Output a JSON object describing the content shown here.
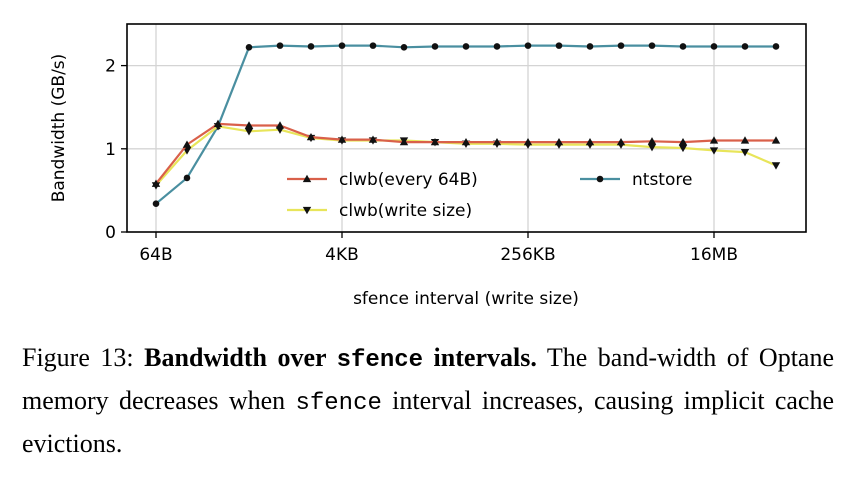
{
  "chart_data": {
    "type": "line",
    "xlabel": "sfence interval (write size)",
    "ylabel": "Bandwidth (GB/s)",
    "x_scale": "log2",
    "x": [
      "64B",
      "128B",
      "256B",
      "512B",
      "1KB",
      "2KB",
      "4KB",
      "8KB",
      "16KB",
      "32KB",
      "64KB",
      "128KB",
      "256KB",
      "512KB",
      "1MB",
      "2MB",
      "4MB",
      "8MB",
      "16MB",
      "32MB",
      "64MB"
    ],
    "x_ticks": [
      "64B",
      "4KB",
      "256KB",
      "16MB"
    ],
    "y_ticks": [
      "0",
      "1",
      "2"
    ],
    "ylim": [
      0,
      2.5
    ],
    "grid": true,
    "legend_position": "inside-lower-right",
    "series": [
      {
        "name": "clwb(every 64B)",
        "marker": "triangle-up",
        "color": "#d9604a",
        "values": [
          0.58,
          1.05,
          1.3,
          1.28,
          1.28,
          1.14,
          1.11,
          1.11,
          1.08,
          1.08,
          1.08,
          1.08,
          1.08,
          1.08,
          1.08,
          1.08,
          1.09,
          1.08,
          1.1,
          1.1,
          1.1
        ]
      },
      {
        "name": "clwb(write size)",
        "marker": "triangle-down",
        "color": "#e8e55a",
        "values": [
          0.56,
          0.98,
          1.27,
          1.21,
          1.23,
          1.13,
          1.1,
          1.1,
          1.1,
          1.08,
          1.06,
          1.06,
          1.05,
          1.05,
          1.05,
          1.05,
          1.02,
          1.01,
          0.98,
          0.96,
          0.8
        ]
      },
      {
        "name": "ntstore",
        "marker": "circle",
        "color": "#4a8fa0",
        "values": [
          0.34,
          0.65,
          1.27,
          2.22,
          2.24,
          2.23,
          2.24,
          2.24,
          2.22,
          2.23,
          2.23,
          2.23,
          2.24,
          2.24,
          2.23,
          2.24,
          2.24,
          2.23,
          2.23,
          2.23,
          2.23
        ]
      }
    ]
  },
  "caption": {
    "figure_label": "Figure 13:",
    "title_pre": "Bandwidth over ",
    "title_code": "sfence",
    "title_post": " intervals.",
    "body_1": " The band-width of Optane memory decreases when ",
    "body_code": "sfence",
    "body_2": " interval increases, causing implicit cache evictions."
  }
}
